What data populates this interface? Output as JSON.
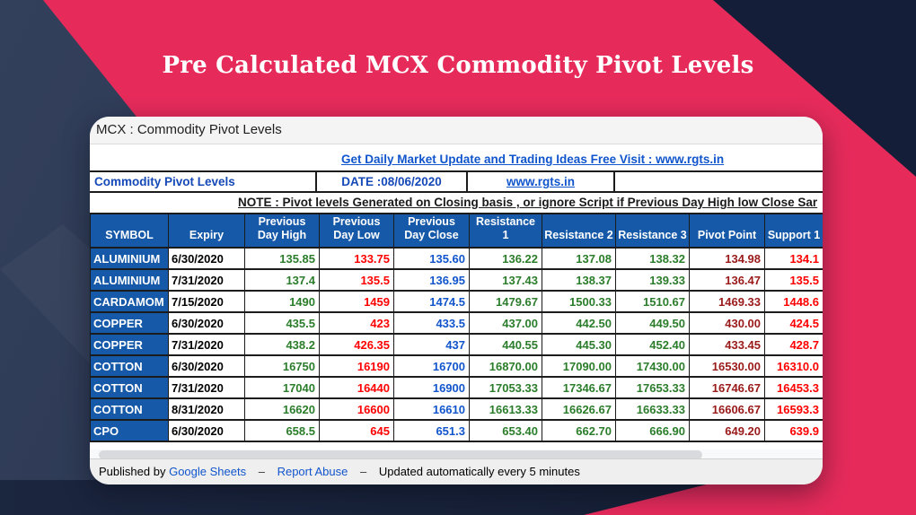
{
  "banner": {
    "title": "Pre Calculated MCX Commodity Pivot Levels"
  },
  "card": {
    "window_title": "MCX : Commodity Pivot Levels",
    "promo_link": "Get Daily Market Update and Trading Ideas Free Visit : www.rgts.in",
    "sheet_label": "Commodity Pivot Levels",
    "date_label": "DATE :08/06/2020",
    "site_link": "www.rgts.in",
    "note": "NOTE : Pivot levels Generated on Closing basis , or ignore Script if Previous Day High low Close Sar",
    "footer": {
      "published_by": "Published by",
      "sheets_link": "Google Sheets",
      "separator": "–",
      "abuse_link": "Report Abuse",
      "updated_text": "Updated automatically every 5 minutes"
    }
  },
  "table": {
    "headers": [
      "SYMBOL",
      "Expiry",
      "Previous Day High",
      "Previous Day Low",
      "Previous Day Close",
      "Resistance 1",
      "Resistance 2",
      "Resistance 3",
      "Pivot Point",
      "Support 1"
    ],
    "rows": [
      [
        "ALUMINIUM",
        "6/30/2020",
        "135.85",
        "133.75",
        "135.60",
        "136.22",
        "137.08",
        "138.32",
        "134.98",
        "134.1"
      ],
      [
        "ALUMINIUM",
        "7/31/2020",
        "137.4",
        "135.5",
        "136.95",
        "137.43",
        "138.37",
        "139.33",
        "136.47",
        "135.5"
      ],
      [
        "CARDAMOM",
        "7/15/2020",
        "1490",
        "1459",
        "1474.5",
        "1479.67",
        "1500.33",
        "1510.67",
        "1469.33",
        "1448.6"
      ],
      [
        "COPPER",
        "6/30/2020",
        "435.5",
        "423",
        "433.5",
        "437.00",
        "442.50",
        "449.50",
        "430.00",
        "424.5"
      ],
      [
        "COPPER",
        "7/31/2020",
        "438.2",
        "426.35",
        "437",
        "440.55",
        "445.30",
        "452.40",
        "433.45",
        "428.7"
      ],
      [
        "COTTON",
        "6/30/2020",
        "16750",
        "16190",
        "16700",
        "16870.00",
        "17090.00",
        "17430.00",
        "16530.00",
        "16310.0"
      ],
      [
        "COTTON",
        "7/31/2020",
        "17040",
        "16440",
        "16900",
        "17053.33",
        "17346.67",
        "17653.33",
        "16746.67",
        "16453.3"
      ],
      [
        "COTTON",
        "8/31/2020",
        "16620",
        "16600",
        "16610",
        "16613.33",
        "16626.67",
        "16633.33",
        "16606.67",
        "16593.3"
      ],
      [
        "CPO",
        "6/30/2020",
        "658.5",
        "645",
        "651.3",
        "653.40",
        "662.70",
        "666.90",
        "649.20",
        "639.9"
      ]
    ]
  },
  "colors": {
    "banner_pink": "#E62B5B",
    "navy": "#2C3852",
    "dark_navy": "#141E38",
    "header_blue": "#1659A8",
    "link_blue": "#1155CC",
    "value_green": "#2B7D2B",
    "value_red": "#FF0000",
    "value_blue": "#1155CC",
    "value_maroon": "#9A1A1A"
  }
}
